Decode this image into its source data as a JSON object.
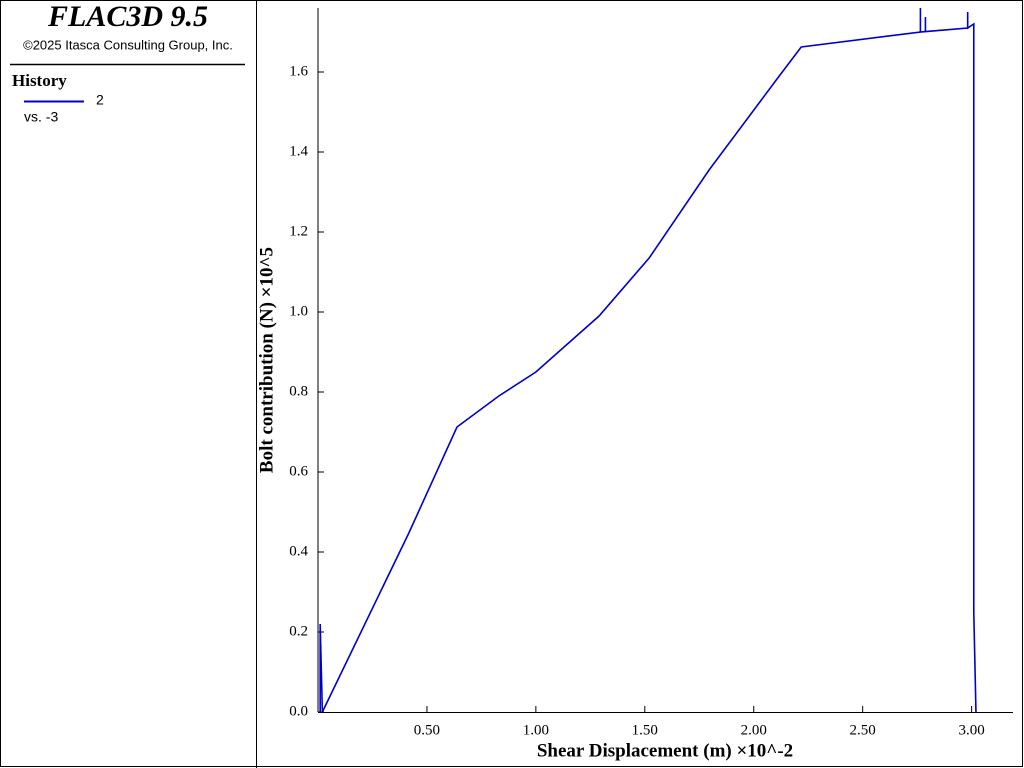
{
  "panel": {
    "title": "FLAC3D 9.5",
    "copyright": "©2025 Itasca Consulting Group, Inc.",
    "history_label": "History",
    "vs_label": "vs. -3"
  },
  "chart_data": {
    "type": "line",
    "xlabel": "Shear Displacement (m) ×10^-2",
    "ylabel": "Bolt contribution (N) ×10^5",
    "x": [
      0.01,
      0.01,
      0.02,
      0.417,
      0.638,
      0.83,
      1.0,
      1.29,
      1.52,
      1.795,
      2.117,
      2.218,
      2.765,
      2.765,
      2.765,
      2.788,
      2.788,
      2.788,
      2.982,
      2.982,
      2.982,
      3.01,
      3.01,
      3.02
    ],
    "series": [
      {
        "name": "2",
        "color": "#0000cc",
        "values": [
          0,
          0.22,
          0,
          0.4475,
          0.7125,
          0.79,
          0.85,
          0.99,
          1.135,
          1.355,
          1.59,
          1.6625,
          1.7,
          1.76,
          1.7,
          1.701,
          1.7375,
          1.701,
          1.71,
          1.75,
          1.71,
          1.72,
          0.25,
          0
        ]
      }
    ],
    "xlim": [
      0,
      3.19
    ],
    "ylim": [
      0,
      1.76
    ],
    "xticks": [
      {
        "value": 0.5,
        "label": "0.50"
      },
      {
        "value": 1,
        "label": "1.00"
      },
      {
        "value": 1.5,
        "label": "1.50"
      },
      {
        "value": 2,
        "label": "2.00"
      },
      {
        "value": 2.5,
        "label": "2.50"
      },
      {
        "value": 3,
        "label": "3.00"
      }
    ],
    "yticks": [
      {
        "value": 0,
        "label": "0.0"
      },
      0.2,
      0.4,
      0.6,
      0.8,
      {
        "value": 1,
        "label": "1.0"
      },
      1.2,
      1.4,
      1.6
    ]
  }
}
